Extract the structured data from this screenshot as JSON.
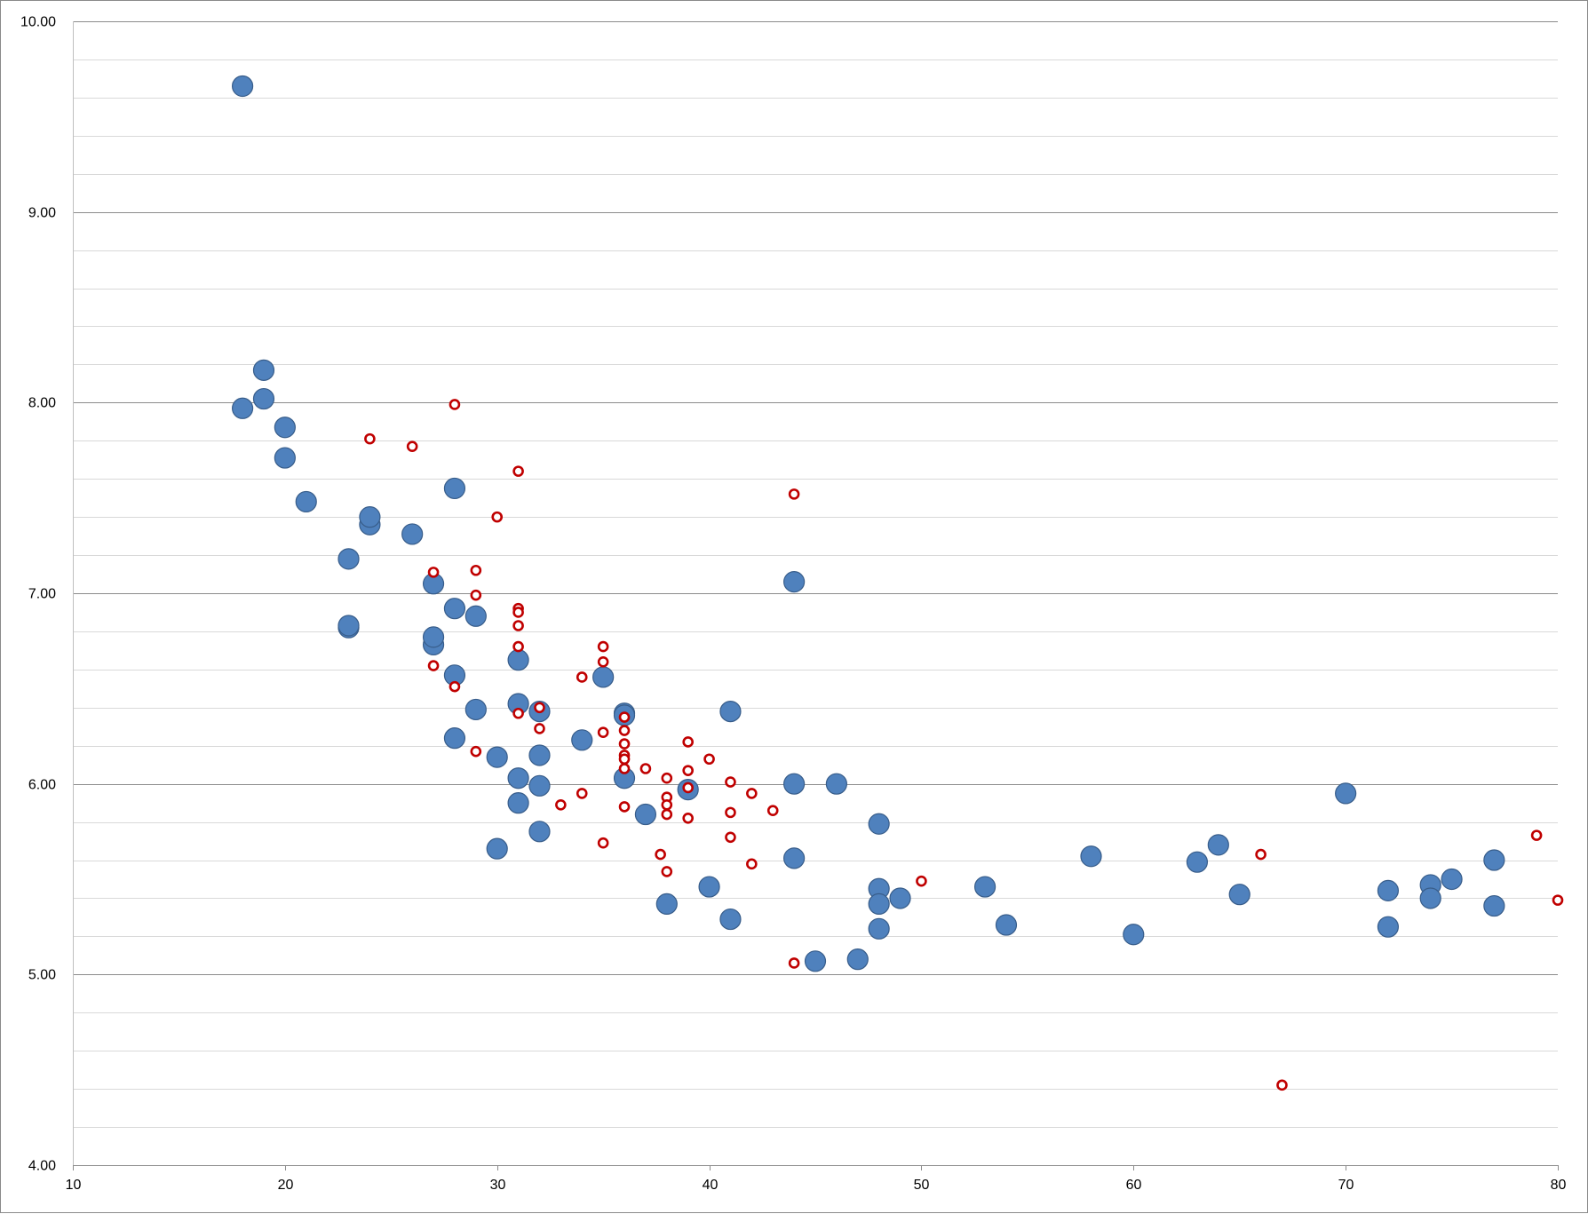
{
  "chart_data": {
    "type": "scatter",
    "title": "",
    "xlabel": "",
    "ylabel": "",
    "xlim": [
      10,
      80
    ],
    "ylim": [
      4,
      10
    ],
    "x_ticks": [
      10,
      20,
      30,
      40,
      50,
      60,
      70,
      80
    ],
    "y_ticks": [
      4,
      5,
      6,
      7,
      8,
      9,
      10
    ],
    "y_tick_labels": [
      "4.00",
      "5.00",
      "6.00",
      "7.00",
      "8.00",
      "9.00",
      "10.00"
    ],
    "y_minor_step": 0.2,
    "grid": true,
    "legend": "none",
    "series": [
      {
        "marker": "filled-circle",
        "color": "#4f81bd",
        "edge_color": "#385d8a",
        "points": [
          [
            18,
            9.66
          ],
          [
            18,
            7.97
          ],
          [
            19,
            8.17
          ],
          [
            19,
            8.02
          ],
          [
            20,
            7.87
          ],
          [
            20,
            7.71
          ],
          [
            21,
            7.48
          ],
          [
            23,
            7.18
          ],
          [
            23,
            6.82
          ],
          [
            23,
            6.83
          ],
          [
            24,
            7.36
          ],
          [
            24,
            7.4
          ],
          [
            26,
            7.31
          ],
          [
            27,
            7.05
          ],
          [
            27,
            6.73
          ],
          [
            27,
            6.77
          ],
          [
            28,
            7.55
          ],
          [
            28,
            6.92
          ],
          [
            28,
            6.57
          ],
          [
            28,
            6.24
          ],
          [
            29,
            6.88
          ],
          [
            29,
            6.39
          ],
          [
            30,
            6.14
          ],
          [
            30,
            5.66
          ],
          [
            31,
            6.65
          ],
          [
            31,
            6.42
          ],
          [
            31,
            6.03
          ],
          [
            31,
            5.9
          ],
          [
            32,
            6.38
          ],
          [
            32,
            6.15
          ],
          [
            32,
            5.99
          ],
          [
            32,
            5.75
          ],
          [
            34,
            6.23
          ],
          [
            35,
            6.56
          ],
          [
            36,
            6.37
          ],
          [
            36,
            6.36
          ],
          [
            36,
            6.03
          ],
          [
            37,
            5.84
          ],
          [
            38,
            5.37
          ],
          [
            39,
            5.97
          ],
          [
            40,
            5.46
          ],
          [
            41,
            6.38
          ],
          [
            41,
            5.29
          ],
          [
            44,
            7.06
          ],
          [
            44,
            6.0
          ],
          [
            44,
            5.61
          ],
          [
            45,
            5.07
          ],
          [
            46,
            6.0
          ],
          [
            47,
            5.08
          ],
          [
            48,
            5.79
          ],
          [
            48,
            5.45
          ],
          [
            48,
            5.37
          ],
          [
            48,
            5.24
          ],
          [
            49,
            5.4
          ],
          [
            53,
            5.46
          ],
          [
            54,
            5.26
          ],
          [
            58,
            5.62
          ],
          [
            60,
            5.21
          ],
          [
            63,
            5.59
          ],
          [
            64,
            5.68
          ],
          [
            65,
            5.42
          ],
          [
            70,
            5.95
          ],
          [
            72,
            5.44
          ],
          [
            72,
            5.25
          ],
          [
            74,
            5.47
          ],
          [
            74,
            5.4
          ],
          [
            75,
            5.5
          ],
          [
            77,
            5.6
          ],
          [
            77,
            5.36
          ]
        ]
      },
      {
        "marker": "hollow-circle",
        "color": "#c00000",
        "fill": "#ffffff",
        "points": [
          [
            24,
            7.81
          ],
          [
            26,
            7.77
          ],
          [
            27,
            7.11
          ],
          [
            27,
            6.62
          ],
          [
            28,
            7.99
          ],
          [
            28,
            6.51
          ],
          [
            29,
            7.12
          ],
          [
            29,
            6.99
          ],
          [
            29,
            6.17
          ],
          [
            30,
            7.4
          ],
          [
            31,
            7.64
          ],
          [
            31,
            6.92
          ],
          [
            31,
            6.9
          ],
          [
            31,
            6.83
          ],
          [
            31,
            6.72
          ],
          [
            31,
            6.37
          ],
          [
            32,
            6.4
          ],
          [
            32,
            6.29
          ],
          [
            33,
            5.89
          ],
          [
            34,
            6.56
          ],
          [
            34,
            5.95
          ],
          [
            35,
            6.72
          ],
          [
            35,
            6.64
          ],
          [
            35,
            6.27
          ],
          [
            35,
            5.69
          ],
          [
            36,
            6.35
          ],
          [
            36,
            6.28
          ],
          [
            36,
            6.21
          ],
          [
            36,
            6.15
          ],
          [
            36,
            6.13
          ],
          [
            36,
            6.08
          ],
          [
            36,
            5.88
          ],
          [
            37,
            6.08
          ],
          [
            37.7,
            5.63
          ],
          [
            38,
            6.03
          ],
          [
            38,
            5.93
          ],
          [
            38,
            5.89
          ],
          [
            38,
            5.84
          ],
          [
            38,
            5.54
          ],
          [
            39,
            6.22
          ],
          [
            39,
            6.07
          ],
          [
            39,
            5.98
          ],
          [
            39,
            5.82
          ],
          [
            40,
            6.13
          ],
          [
            41,
            6.01
          ],
          [
            41,
            5.85
          ],
          [
            41,
            5.72
          ],
          [
            42,
            5.95
          ],
          [
            42,
            5.58
          ],
          [
            43,
            5.86
          ],
          [
            44,
            7.52
          ],
          [
            44,
            5.06
          ],
          [
            50,
            5.49
          ],
          [
            66,
            5.63
          ],
          [
            67,
            4.42
          ],
          [
            79,
            5.73
          ],
          [
            80,
            5.39
          ]
        ]
      }
    ]
  }
}
